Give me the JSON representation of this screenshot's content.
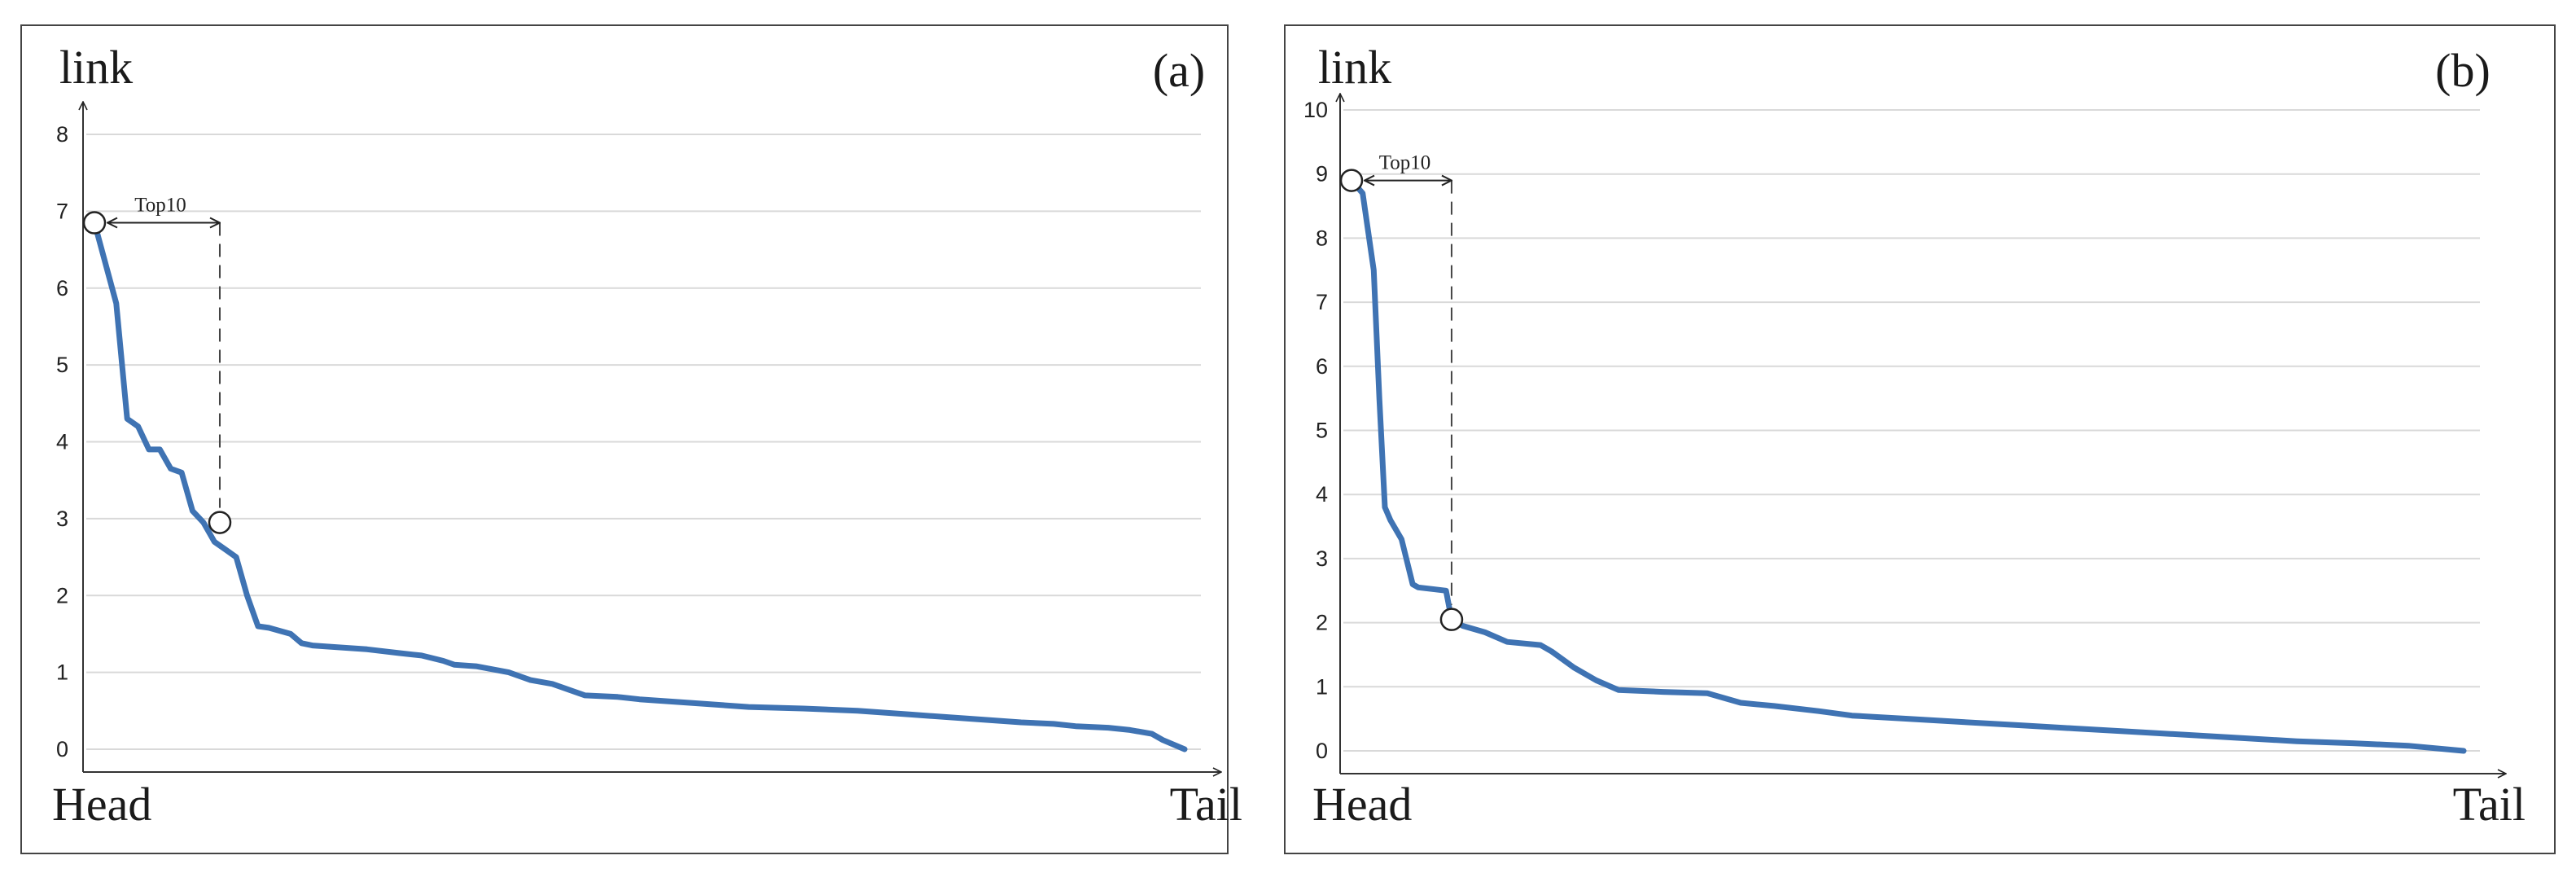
{
  "chart_data": [
    {
      "type": "line",
      "panel_label": "(a)",
      "ylabel": "link",
      "x_start_label": "Head",
      "x_end_label": "Tail",
      "annotation": "Top10",
      "ylim": [
        0,
        8
      ],
      "yticks": [
        0,
        1,
        2,
        3,
        4,
        5,
        6,
        7,
        8
      ],
      "grid": "horizontal",
      "line_color": "#3f73b3",
      "x": [
        0.0,
        0.02,
        0.03,
        0.04,
        0.05,
        0.06,
        0.07,
        0.08,
        0.09,
        0.1,
        0.11,
        0.12,
        0.13,
        0.14,
        0.15,
        0.16,
        0.18,
        0.19,
        0.2,
        0.22,
        0.25,
        0.28,
        0.3,
        0.32,
        0.33,
        0.35,
        0.38,
        0.4,
        0.42,
        0.45,
        0.48,
        0.5,
        0.55,
        0.6,
        0.65,
        0.7,
        0.75,
        0.8,
        0.85,
        0.88,
        0.9,
        0.93,
        0.95,
        0.97,
        0.98,
        1.0
      ],
      "values": [
        6.85,
        5.8,
        4.3,
        4.2,
        3.9,
        3.9,
        3.65,
        3.6,
        3.1,
        2.95,
        2.7,
        2.6,
        2.5,
        2.0,
        1.6,
        1.58,
        1.5,
        1.38,
        1.35,
        1.33,
        1.3,
        1.25,
        1.22,
        1.15,
        1.1,
        1.08,
        1.0,
        0.9,
        0.85,
        0.7,
        0.68,
        0.65,
        0.6,
        0.55,
        0.53,
        0.5,
        0.45,
        0.4,
        0.35,
        0.33,
        0.3,
        0.28,
        0.25,
        0.2,
        0.12,
        0.0
      ],
      "markers": [
        {
          "x": 0.0,
          "y": 6.85
        },
        {
          "x": 0.115,
          "y": 2.95
        }
      ],
      "top10_x": 0.115
    },
    {
      "type": "line",
      "panel_label": "(b)",
      "ylabel": "link",
      "x_start_label": "Head",
      "x_end_label": "Tail",
      "annotation": "Top10",
      "ylim": [
        0,
        10
      ],
      "yticks": [
        0,
        1,
        2,
        3,
        4,
        5,
        6,
        7,
        8,
        9,
        10
      ],
      "grid": "horizontal",
      "line_color": "#3f73b3",
      "x": [
        0.0,
        0.01,
        0.02,
        0.025,
        0.03,
        0.035,
        0.045,
        0.055,
        0.06,
        0.075,
        0.085,
        0.09,
        0.1,
        0.12,
        0.14,
        0.17,
        0.18,
        0.2,
        0.22,
        0.24,
        0.28,
        0.32,
        0.35,
        0.38,
        0.42,
        0.45,
        0.5,
        0.55,
        0.6,
        0.65,
        0.7,
        0.75,
        0.8,
        0.85,
        0.9,
        0.95,
        1.0
      ],
      "values": [
        8.9,
        8.7,
        7.5,
        5.5,
        3.8,
        3.6,
        3.3,
        2.6,
        2.55,
        2.52,
        2.5,
        2.05,
        1.95,
        1.85,
        1.7,
        1.65,
        1.55,
        1.3,
        1.1,
        0.95,
        0.92,
        0.9,
        0.75,
        0.7,
        0.62,
        0.55,
        0.5,
        0.45,
        0.4,
        0.35,
        0.3,
        0.25,
        0.2,
        0.15,
        0.12,
        0.08,
        0.0
      ],
      "markers": [
        {
          "x": 0.0,
          "y": 8.9
        },
        {
          "x": 0.09,
          "y": 2.05
        }
      ],
      "top10_x": 0.09
    }
  ]
}
